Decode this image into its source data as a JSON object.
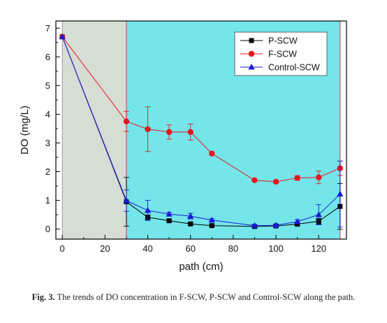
{
  "chart_data": {
    "type": "line",
    "title": "",
    "xlabel": "path (cm)",
    "ylabel": "DO (mg/L)",
    "xlim": [
      -3,
      133
    ],
    "ylim": [
      -0.35,
      7.25
    ],
    "x_ticks": [
      0,
      20,
      40,
      60,
      80,
      100,
      120
    ],
    "y_ticks": [
      0,
      1,
      2,
      3,
      4,
      5,
      6,
      7
    ],
    "grid": false,
    "legend_position": "top-right",
    "background_regions": [
      {
        "x_from": 0,
        "x_to": 30,
        "color": "#d6ddd5"
      },
      {
        "x_from": 30,
        "x_to": 130,
        "color": "#74e6ea"
      }
    ],
    "series": [
      {
        "name": "P-SCW",
        "color": "#000000",
        "marker": "square",
        "x": [
          0,
          30,
          40,
          50,
          60,
          70,
          90,
          100,
          110,
          120,
          130
        ],
        "y": [
          6.7,
          0.95,
          0.41,
          0.29,
          0.18,
          0.12,
          0.09,
          0.11,
          0.17,
          0.27,
          0.79
        ],
        "err": [
          0,
          0.85,
          0.08,
          0.04,
          0.05,
          0.04,
          0.03,
          0.04,
          0.05,
          0.1,
          0.8
        ]
      },
      {
        "name": "F-SCW",
        "color": "#e8141e",
        "marker": "circle",
        "x": [
          0,
          30,
          40,
          50,
          60,
          70,
          90,
          100,
          110,
          120,
          130
        ],
        "y": [
          6.7,
          3.75,
          3.48,
          3.38,
          3.38,
          2.63,
          1.7,
          1.65,
          1.78,
          1.8,
          2.12
        ],
        "err": [
          0,
          0.35,
          0.78,
          0.25,
          0.28,
          0.04,
          0.03,
          0.04,
          0.08,
          0.22,
          0.25
        ]
      },
      {
        "name": "Control-SCW",
        "color": "#1a1ad8",
        "marker": "triangle",
        "x": [
          0,
          30,
          40,
          50,
          60,
          70,
          90,
          100,
          110,
          120,
          130
        ],
        "y": [
          6.7,
          0.99,
          0.65,
          0.52,
          0.45,
          0.31,
          0.12,
          0.13,
          0.26,
          0.5,
          1.22
        ],
        "err": [
          0,
          0.37,
          0.35,
          0.06,
          0.1,
          0.05,
          0.04,
          0.04,
          0.07,
          0.35,
          1.15
        ]
      }
    ]
  },
  "caption": {
    "label": "Fig. 3.",
    "text": " The trends of DO concentration in F-SCW, P-SCW and Control-SCW along the path."
  }
}
